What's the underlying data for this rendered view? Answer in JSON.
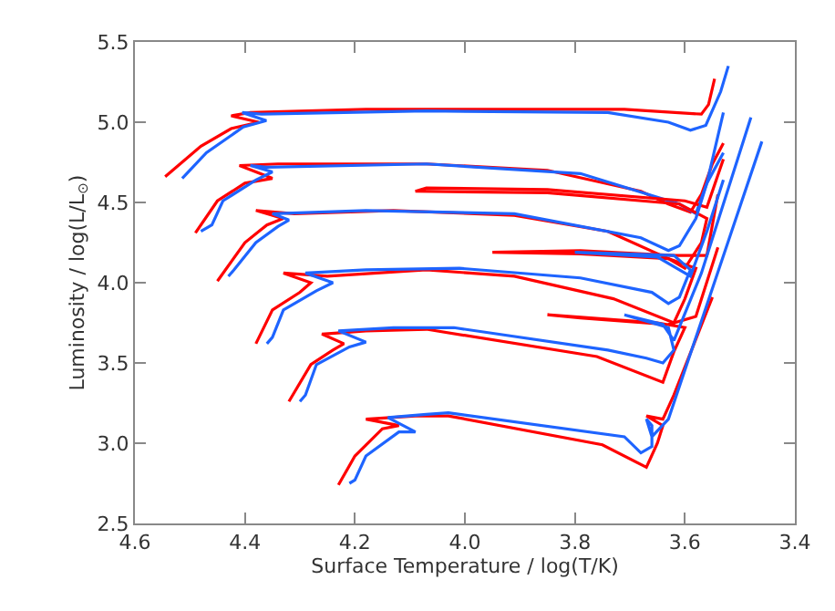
{
  "chart_data": {
    "type": "line",
    "xlabel": "Surface Temperature / log(T/K)",
    "ylabel": "Luminosity / log(L/L$_{⊙}$)",
    "xlim": [
      4.6,
      3.4
    ],
    "ylim": [
      2.5,
      5.5
    ],
    "xticks": [
      {
        "value": 4.6,
        "label": "4.6"
      },
      {
        "value": 4.4,
        "label": "4.4"
      },
      {
        "value": 4.2,
        "label": "4.2"
      },
      {
        "value": 4.0,
        "label": "4.0"
      },
      {
        "value": 3.8,
        "label": "3.8"
      },
      {
        "value": 3.6,
        "label": "3.6"
      },
      {
        "value": 3.4,
        "label": "3.4"
      }
    ],
    "yticks": [
      {
        "value": 2.5,
        "label": "2.5"
      },
      {
        "value": 3.0,
        "label": "3.0"
      },
      {
        "value": 3.5,
        "label": "3.5"
      },
      {
        "value": 4.0,
        "label": "4.0"
      },
      {
        "value": 4.5,
        "label": "4.5"
      },
      {
        "value": 5.0,
        "label": "5.0"
      },
      {
        "value": 5.5,
        "label": "5.5"
      }
    ],
    "marker": "none",
    "line_style": "solid",
    "series": [
      {
        "color": "#ff0000",
        "x": [
          4.545,
          4.48,
          4.425,
          4.375,
          4.425,
          4.39,
          4.18,
          3.96,
          3.71,
          3.57,
          3.557,
          3.546
        ],
        "values": [
          4.66,
          4.85,
          4.96,
          5.0,
          5.04,
          5.06,
          5.08,
          5.08,
          5.08,
          5.05,
          5.11,
          5.27
        ]
      },
      {
        "color": "#1e64ff",
        "x": [
          4.514,
          4.47,
          4.403,
          4.361,
          4.405,
          4.37,
          4.07,
          3.74,
          3.63,
          3.59,
          3.562,
          3.535,
          3.521
        ],
        "values": [
          4.65,
          4.81,
          4.97,
          5.01,
          5.06,
          5.05,
          5.07,
          5.06,
          5.0,
          4.95,
          4.98,
          5.19,
          5.35
        ]
      },
      {
        "color": "#ff0000",
        "x": [
          4.49,
          4.45,
          4.4,
          4.35,
          4.41,
          4.34,
          4.07,
          3.85,
          3.68,
          3.63,
          3.59,
          3.57,
          3.55,
          3.53
        ],
        "values": [
          4.31,
          4.51,
          4.62,
          4.65,
          4.73,
          4.74,
          4.74,
          4.7,
          4.57,
          4.49,
          4.44,
          4.55,
          4.74,
          4.87
        ]
      },
      {
        "color": "#1e64ff",
        "x": [
          4.48,
          4.46,
          4.44,
          4.38,
          4.35,
          4.39,
          4.36,
          4.07,
          3.79,
          3.61,
          3.58,
          3.56,
          3.53
        ],
        "values": [
          4.32,
          4.36,
          4.51,
          4.64,
          4.69,
          4.73,
          4.72,
          4.74,
          4.68,
          4.49,
          4.43,
          4.62,
          5.06
        ]
      },
      {
        "color": "#ff0000",
        "x": [
          4.45,
          4.4,
          4.36,
          4.33,
          4.38,
          4.31,
          4.13,
          3.91,
          3.74,
          3.63,
          3.6,
          3.57,
          3.56,
          3.61,
          3.85,
          4.09,
          4.07,
          3.85,
          3.6,
          3.56,
          3.53
        ],
        "values": [
          4.01,
          4.25,
          4.36,
          4.4,
          4.45,
          4.43,
          4.45,
          4.42,
          4.32,
          4.15,
          4.09,
          4.25,
          4.4,
          4.49,
          4.56,
          4.57,
          4.59,
          4.58,
          4.51,
          4.47,
          4.77
        ]
      },
      {
        "color": "#1e64ff",
        "x": [
          4.43,
          4.42,
          4.38,
          4.34,
          4.32,
          4.35,
          4.18,
          3.91,
          3.68,
          3.63,
          3.61,
          3.58,
          3.56,
          3.53
        ],
        "values": [
          4.04,
          4.08,
          4.25,
          4.35,
          4.39,
          4.43,
          4.45,
          4.43,
          4.28,
          4.2,
          4.23,
          4.4,
          4.62,
          4.81
        ]
      },
      {
        "color": "#ff0000",
        "x": [
          4.38,
          4.35,
          4.3,
          4.28,
          4.33,
          4.25,
          4.07,
          3.91,
          3.73,
          3.62,
          3.6,
          3.58,
          3.63,
          3.79,
          3.95,
          3.79,
          3.62,
          3.56,
          3.54
        ],
        "values": [
          3.62,
          3.83,
          3.94,
          4.0,
          4.06,
          4.04,
          4.08,
          4.04,
          3.9,
          3.75,
          3.9,
          4.09,
          4.15,
          4.18,
          4.19,
          4.2,
          4.17,
          4.17,
          4.55
        ]
      },
      {
        "color": "#1e64ff",
        "x": [
          4.36,
          4.35,
          4.33,
          4.27,
          4.24,
          4.29,
          4.18,
          4.01,
          3.79,
          3.66,
          3.63,
          3.61,
          3.59,
          3.62,
          3.8,
          3.65,
          3.61,
          3.59,
          3.56,
          3.53
        ],
        "values": [
          3.62,
          3.66,
          3.83,
          3.95,
          4.0,
          4.06,
          4.08,
          4.09,
          4.03,
          3.94,
          3.87,
          3.91,
          4.08,
          4.17,
          4.19,
          4.16,
          4.08,
          4.04,
          4.32,
          4.64
        ]
      },
      {
        "color": "#ff0000",
        "x": [
          4.32,
          4.28,
          4.24,
          4.22,
          4.26,
          4.18,
          4.07,
          3.76,
          3.64,
          3.62,
          3.6,
          3.65,
          3.85,
          3.79,
          3.63,
          3.58,
          3.54
        ],
        "values": [
          3.26,
          3.49,
          3.58,
          3.62,
          3.68,
          3.7,
          3.71,
          3.54,
          3.38,
          3.57,
          3.72,
          3.75,
          3.8,
          3.78,
          3.74,
          3.79,
          4.22
        ]
      },
      {
        "color": "#1e64ff",
        "x": [
          4.3,
          4.29,
          4.27,
          4.21,
          4.18,
          4.23,
          4.13,
          4.02,
          3.74,
          3.67,
          3.64,
          3.62,
          3.63,
          3.71,
          3.64,
          3.62,
          3.57,
          3.48
        ],
        "values": [
          3.26,
          3.3,
          3.49,
          3.6,
          3.63,
          3.7,
          3.72,
          3.72,
          3.58,
          3.53,
          3.5,
          3.58,
          3.72,
          3.8,
          3.74,
          3.64,
          4.06,
          5.03
        ]
      },
      {
        "color": "#ff0000",
        "x": [
          4.23,
          4.2,
          4.15,
          4.12,
          4.18,
          4.09,
          4.03,
          3.75,
          3.67,
          3.65,
          3.64,
          3.67,
          3.64,
          3.62,
          3.55
        ],
        "values": [
          2.74,
          2.92,
          3.09,
          3.11,
          3.15,
          3.17,
          3.17,
          2.99,
          2.85,
          3.0,
          3.11,
          3.17,
          3.15,
          3.3,
          3.91
        ]
      },
      {
        "color": "#1e64ff",
        "x": [
          4.21,
          4.2,
          4.18,
          4.12,
          4.09,
          4.14,
          4.07,
          4.03,
          3.71,
          3.68,
          3.66,
          3.66,
          3.67,
          3.66,
          3.63,
          3.46
        ],
        "values": [
          2.75,
          2.77,
          2.92,
          3.07,
          3.07,
          3.16,
          3.18,
          3.19,
          3.04,
          2.94,
          2.98,
          3.11,
          3.15,
          3.04,
          3.15,
          4.88
        ]
      }
    ]
  }
}
